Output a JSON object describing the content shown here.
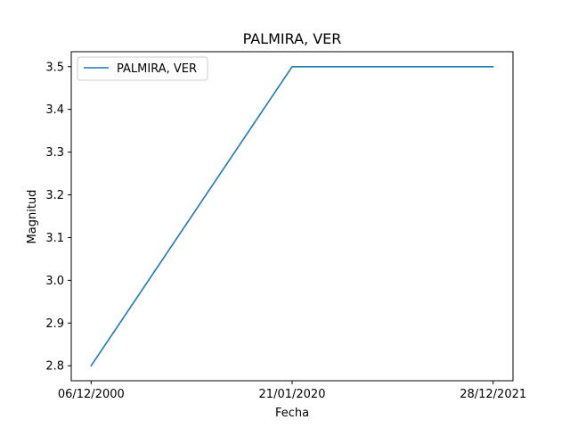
{
  "chart_data": {
    "type": "line",
    "title": "PALMIRA, VER",
    "xlabel": "Fecha",
    "ylabel": "Magnitud",
    "categories": [
      "06/12/2000",
      "21/01/2020",
      "28/12/2021"
    ],
    "series": [
      {
        "name": "PALMIRA, VER",
        "values": [
          2.8,
          3.5,
          3.5
        ],
        "color": "#1f77b4"
      }
    ],
    "ylim": [
      2.765,
      3.535
    ],
    "yticks": [
      "2.8",
      "2.9",
      "3.0",
      "3.1",
      "3.2",
      "3.3",
      "3.4",
      "3.5"
    ],
    "grid": false,
    "legend_position": "top-left"
  }
}
